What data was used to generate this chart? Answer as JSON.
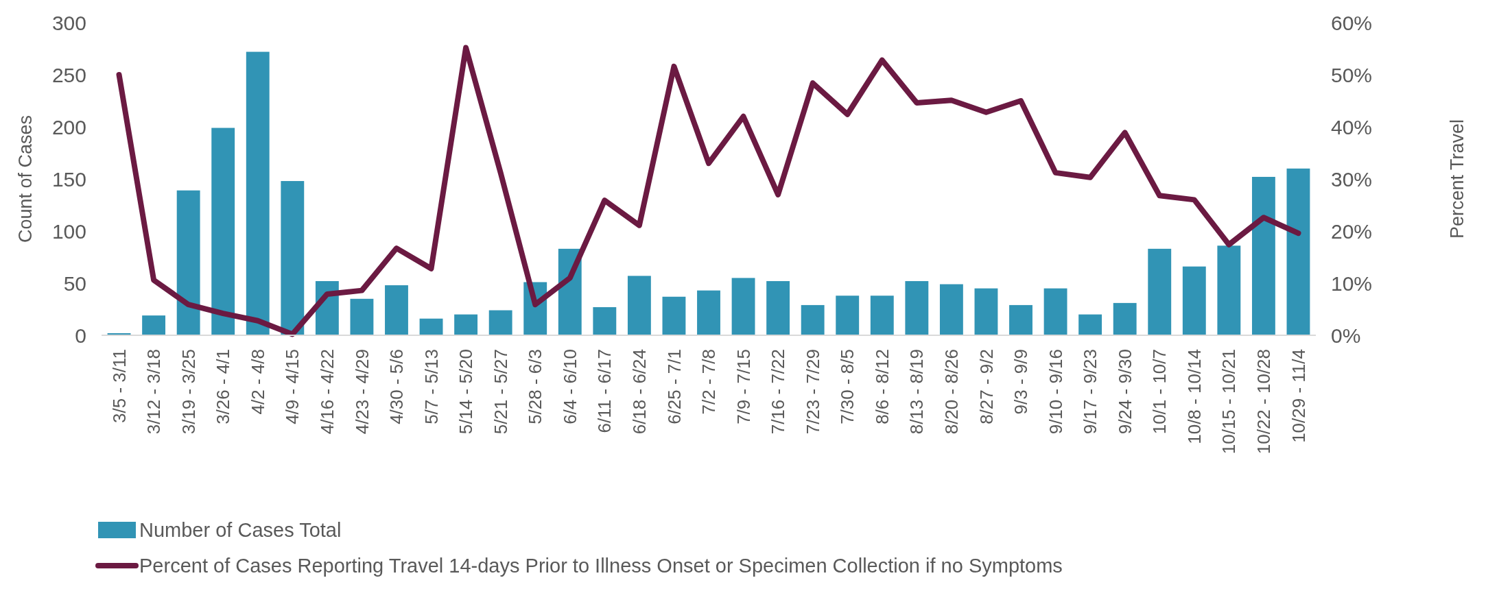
{
  "chart_data": {
    "type": "bar",
    "ylabel": "Count of Cases",
    "y2label": "Percent Travel",
    "categories": [
      "3/5 - 3/11",
      "3/12 - 3/18",
      "3/19 - 3/25",
      "3/26 - 4/1",
      "4/2 - 4/8",
      "4/9 - 4/15",
      "4/16 - 4/22",
      "4/23 - 4/29",
      "4/30 - 5/6",
      "5/7 - 5/13",
      "5/14 - 5/20",
      "5/21 - 5/27",
      "5/28 - 6/3",
      "6/4 - 6/10",
      "6/11 - 6/17",
      "6/18 - 6/24",
      "6/25 - 7/1",
      "7/2 - 7/8",
      "7/9 - 7/15",
      "7/16 - 7/22",
      "7/23 - 7/29",
      "7/30 - 8/5",
      "8/6 - 8/12",
      "8/13 - 8/19",
      "8/20 - 8/26",
      "8/27 - 9/2",
      "9/3 - 9/9",
      "9/10 - 9/16",
      "9/17 - 9/23",
      "9/24 - 9/30",
      "10/1 - 10/7",
      "10/8 - 10/14",
      "10/15 - 10/21",
      "10/22 - 10/28",
      "10/29 - 11/4"
    ],
    "series": [
      {
        "name": "Number of Cases Total",
        "color": "#3194b5",
        "values": [
          2,
          19,
          139,
          199,
          272,
          148,
          52,
          35,
          48,
          16,
          20,
          24,
          51,
          83,
          27,
          57,
          37,
          43,
          55,
          52,
          29,
          38,
          38,
          52,
          49,
          45,
          29,
          45,
          20,
          31,
          83,
          66,
          86,
          152,
          160
        ]
      },
      {
        "name": "Percent of Cases Reporting Travel 14-days Prior to Illness Onset or Specimen Collection if no Symptoms",
        "type": "line",
        "axis": "y2",
        "color": "#6b1a42",
        "values": [
          50,
          10.6,
          5.9,
          4.2,
          2.8,
          0.2,
          7.9,
          8.6,
          16.7,
          12.8,
          55.2,
          31.2,
          5.9,
          11,
          25.9,
          21.1,
          51.6,
          33,
          42,
          27,
          48.4,
          42.4,
          52.8,
          44.6,
          45.1,
          42.8,
          45,
          31.2,
          30.3,
          38.9,
          26.8,
          26,
          17.4,
          22.6,
          19.6
        ]
      }
    ],
    "ylim": [
      0,
      300
    ],
    "yticks": [
      0,
      50,
      100,
      150,
      200,
      250,
      300
    ],
    "y2lim": [
      0,
      60
    ],
    "y2ticks": [
      {
        "value": 0,
        "label": "0%"
      },
      {
        "value": 10,
        "label": "10%"
      },
      {
        "value": 20,
        "label": "20%"
      },
      {
        "value": 30,
        "label": "30%"
      },
      {
        "value": 40,
        "label": "40%"
      },
      {
        "value": 50,
        "label": "50%"
      },
      {
        "value": 60,
        "label": "60%"
      }
    ],
    "grid": false,
    "legend": "bottom",
    "marker": "none",
    "line_style": "solid"
  }
}
